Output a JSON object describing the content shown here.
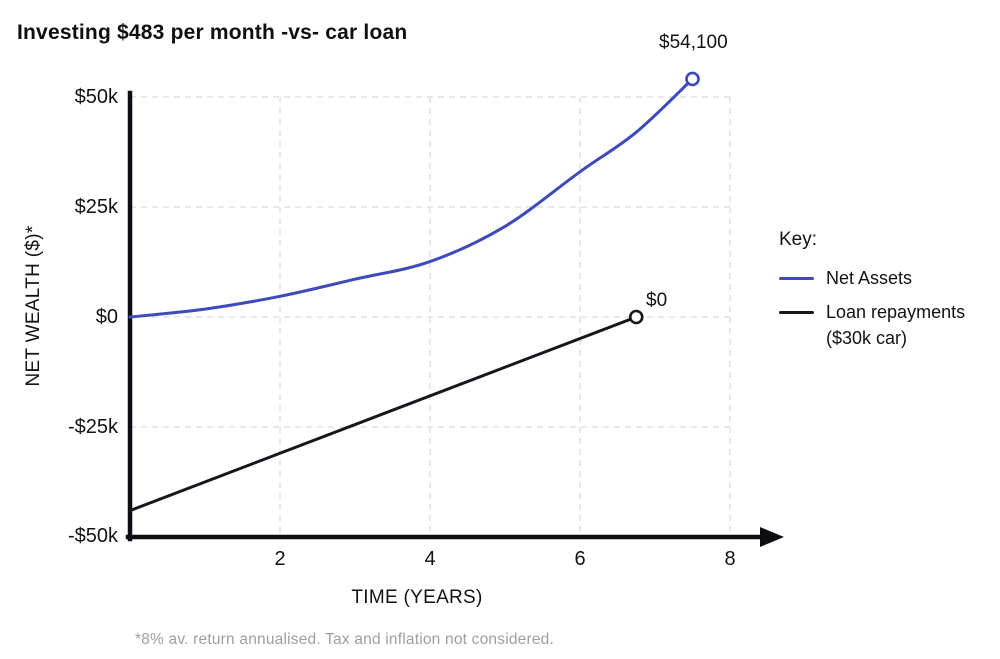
{
  "title": "Investing $483 per month -vs- car loan",
  "annotations": {
    "net_assets_end": "$54,100",
    "loan_end": "$0"
  },
  "axes": {
    "x_label": "TIME (YEARS)",
    "y_label": "NET WEALTH ($)*",
    "x_ticks": [
      "2",
      "4",
      "6",
      "8"
    ],
    "y_ticks": [
      "$50k",
      "$25k",
      "$0",
      "-$25k",
      "-$50k"
    ]
  },
  "legend": {
    "heading": "Key:",
    "items": [
      {
        "label": "Net Assets",
        "label2": "",
        "color": "#3c4abc"
      },
      {
        "label": "Loan repayments",
        "label2": "($30k car)",
        "color": "#16161d"
      }
    ]
  },
  "footnote": "*8% av. return annualised. Tax and inflation not considered.",
  "chart_data": {
    "type": "line",
    "title": "Investing $483 per month -vs- car loan",
    "xlabel": "TIME (YEARS)",
    "ylabel": "NET WEALTH ($)*",
    "xlim": [
      0,
      8.7
    ],
    "ylim": [
      -50000,
      50000
    ],
    "x_tick_values": [
      2,
      4,
      6,
      8
    ],
    "y_tick_values": [
      50000,
      25000,
      0,
      -25000,
      -50000
    ],
    "grid": true,
    "legend_position": "right",
    "series": [
      {
        "name": "Net Assets",
        "color": "#3c4abc",
        "x": [
          0,
          1,
          2,
          3,
          4,
          5,
          6,
          6.75,
          7.5
        ],
        "y": [
          0,
          1800,
          4700,
          8600,
          12600,
          20600,
          33000,
          42000,
          54100
        ],
        "end_marker": "open-circle",
        "end_label": "$54,100"
      },
      {
        "name": "Loan repayments ($30k car)",
        "color": "#16161d",
        "x": [
          0,
          6.75
        ],
        "y": [
          -44000,
          0
        ],
        "end_marker": "open-circle",
        "end_label": "$0"
      }
    ],
    "footnote": "*8% av. return annualised. Tax and inflation not considered."
  }
}
